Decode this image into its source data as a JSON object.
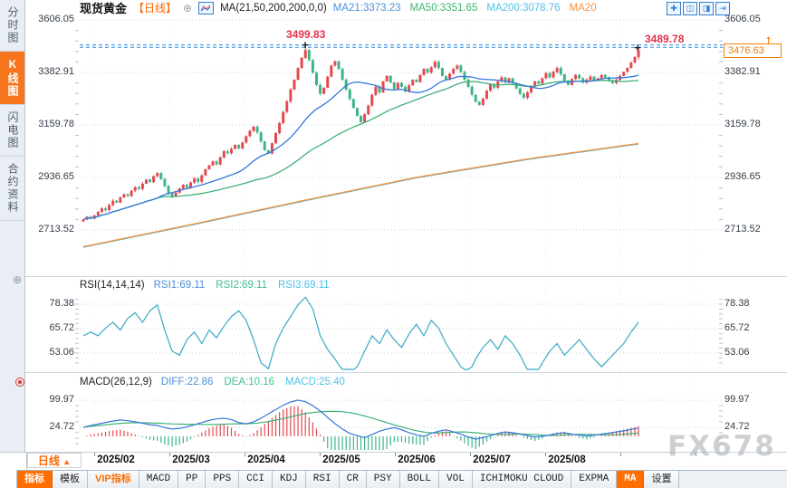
{
  "app": {
    "watermark": "FX678"
  },
  "sidebar": {
    "tabs": [
      {
        "label": "分时图",
        "active": false
      },
      {
        "label": "K线图",
        "active": true
      },
      {
        "label": "闪电图",
        "active": false
      },
      {
        "label": "合约资料",
        "active": false
      }
    ]
  },
  "header": {
    "title": "现货黄金",
    "period": "【日线】",
    "plus_icon": "⊕",
    "ma_formula": "MA(21,50,200,200,0,0)",
    "ma_readouts": [
      {
        "text": "MA21:3373.23",
        "color": "#4a90d9"
      },
      {
        "text": "MA50:3351.65",
        "color": "#3eb370"
      },
      {
        "text": "MA200:3078.76",
        "color": "#4ec2e8"
      },
      {
        "text": "MA20",
        "color": "#f6923c"
      }
    ],
    "window_icons": [
      "✚",
      "◫",
      "◨",
      "⇥"
    ]
  },
  "annotations": {
    "peak_label": "3499.83",
    "high_label": "3489.78",
    "last_price": "3476.63"
  },
  "rsi": {
    "title": "RSI(14,14,14)",
    "readouts": [
      {
        "text": "RSI1:69.11",
        "color": "#4a90d9"
      },
      {
        "text": "RSI2:69.11",
        "color": "#3fc08d"
      },
      {
        "text": "RSI3:69.11",
        "color": "#4ec2e8"
      }
    ]
  },
  "macd": {
    "title": "MACD(26,12,9)",
    "readouts": [
      {
        "text": "DIFF:22.86",
        "color": "#4a90d9"
      },
      {
        "text": "DEA:10.16",
        "color": "#3fc08d"
      },
      {
        "text": "MACD:25.40",
        "color": "#4ec2e8"
      }
    ]
  },
  "xaxis": {
    "period_label": "日线",
    "period_arrow": "▲"
  },
  "toolbar": {
    "tabs": [
      {
        "label": "指标",
        "style": "active"
      },
      {
        "label": "模板",
        "style": ""
      },
      {
        "label": "VIP指标",
        "style": "vip"
      },
      {
        "label": "MACD",
        "style": "mono"
      },
      {
        "label": "PP",
        "style": "mono"
      },
      {
        "label": "PPS",
        "style": "mono"
      },
      {
        "label": "CCI",
        "style": "mono"
      },
      {
        "label": "KDJ",
        "style": "mono"
      },
      {
        "label": "RSI",
        "style": "mono"
      },
      {
        "label": "CR",
        "style": "mono"
      },
      {
        "label": "PSY",
        "style": "mono"
      },
      {
        "label": "BOLL",
        "style": "mono"
      },
      {
        "label": "VOL",
        "style": "mono"
      },
      {
        "label": "ICHIMOKU CLOUD",
        "style": "mono"
      },
      {
        "label": "EXPMA",
        "style": "mono"
      },
      {
        "label": "MA",
        "style": "active mono"
      },
      {
        "label": "设置",
        "style": ""
      }
    ]
  },
  "colors": {
    "candle_up": "#e5484f",
    "candle_down": "#3eb488",
    "ma21": "#3577d9",
    "ma50": "#3eb179",
    "ma200_cyan": "#49b8d8",
    "ma200_orange": "#f6923c",
    "rsi_line": "#3aa8c9",
    "macd_diff": "#3577d9",
    "macd_dea": "#3eb179",
    "hist_up": "#e5484f",
    "hist_down": "#3eb488",
    "dashed_line": "#2a8ce8",
    "grid": "#ccd2da",
    "grid_v": "#e9edf2",
    "tick": "#b9c0c9"
  },
  "chart_data": {
    "type": "candlestick",
    "symbol": "现货黄金",
    "interval": "日线",
    "title": "现货黄金【日线】",
    "x_dates": [
      "2025/02",
      "2025/03",
      "2025/04",
      "2025/05",
      "2025/06",
      "2025/07",
      "2025/08"
    ],
    "price_ticks": [
      3606.05,
      3382.91,
      3159.78,
      2936.65,
      2713.52
    ],
    "price_axis_range": [
      2713.52,
      3606.05
    ],
    "key_points": {
      "peak_high": 3499.83,
      "recent_high": 3489.78,
      "last_price": 3476.63
    },
    "closes": [
      2758,
      2770,
      2762,
      2775,
      2790,
      2805,
      2798,
      2820,
      2838,
      2830,
      2852,
      2865,
      2858,
      2880,
      2895,
      2888,
      2910,
      2928,
      2917,
      2942,
      2955,
      2930,
      2900,
      2868,
      2855,
      2872,
      2890,
      2905,
      2893,
      2915,
      2932,
      2918,
      2945,
      2972,
      2988,
      3005,
      2992,
      3022,
      3048,
      3040,
      3058,
      3075,
      3060,
      3085,
      3112,
      3135,
      3152,
      3128,
      3090,
      3052,
      3038,
      3082,
      3125,
      3168,
      3215,
      3260,
      3310,
      3352,
      3402,
      3445,
      3478,
      3435,
      3382,
      3330,
      3292,
      3318,
      3365,
      3412,
      3430,
      3398,
      3352,
      3310,
      3270,
      3232,
      3198,
      3172,
      3205,
      3242,
      3288,
      3322,
      3298,
      3345,
      3368,
      3340,
      3312,
      3338,
      3322,
      3302,
      3328,
      3352,
      3342,
      3372,
      3398,
      3382,
      3405,
      3428,
      3402,
      3368,
      3352,
      3378,
      3398,
      3412,
      3385,
      3352,
      3322,
      3288,
      3258,
      3245,
      3272,
      3305,
      3332,
      3318,
      3345,
      3362,
      3340,
      3358,
      3338,
      3315,
      3292,
      3275,
      3298,
      3322,
      3345,
      3335,
      3358,
      3380,
      3362,
      3385,
      3402,
      3375,
      3348,
      3330,
      3355,
      3372,
      3358,
      3340,
      3352,
      3365,
      3348,
      3358,
      3372,
      3362,
      3348,
      3338,
      3352,
      3368,
      3385,
      3402,
      3425,
      3448,
      3476.63
    ],
    "high_overrides": {
      "60": 3499.83,
      "150": 3489.78
    },
    "low_overrides": {
      "150": 3438
    },
    "moving_averages": {
      "ma21_last": 3373.23,
      "ma50_last": 3351.65,
      "ma200_last": 3078.76,
      "ma200_path": [
        [
          0,
          2640
        ],
        [
          30,
          2737
        ],
        [
          60,
          2838
        ],
        [
          90,
          2935
        ],
        [
          120,
          3013
        ],
        [
          150,
          3078.76
        ]
      ]
    },
    "rsi": {
      "params": "14,14,14",
      "last": [
        69.11,
        69.11,
        69.11
      ],
      "ticks": [
        78.38,
        65.72,
        53.06
      ],
      "samples_step": 2,
      "values": [
        62,
        64,
        62,
        66,
        69,
        65,
        71,
        74,
        69,
        75,
        78,
        65,
        54,
        52,
        60,
        64,
        58,
        65,
        61,
        67,
        72,
        75,
        70,
        60,
        48,
        45,
        58,
        66,
        72,
        78,
        82,
        76,
        62,
        55,
        50,
        44,
        40,
        46,
        54,
        62,
        58,
        65,
        60,
        56,
        63,
        68,
        62,
        70,
        66,
        58,
        52,
        46,
        42,
        50,
        56,
        60,
        55,
        62,
        58,
        52,
        44,
        40,
        48,
        54,
        58,
        52,
        56,
        60,
        55,
        50,
        46,
        50,
        54,
        58,
        64,
        69
      ]
    },
    "macd": {
      "params": "26,12,9",
      "last": {
        "diff": 22.86,
        "dea": 10.16,
        "macd": 25.4
      },
      "ticks": [
        99.97,
        24.72
      ],
      "samples_step": 2,
      "diff_values": [
        25,
        30,
        34,
        38,
        42,
        45,
        43,
        40,
        36,
        32,
        30,
        24,
        20,
        22,
        26,
        32,
        38,
        44,
        48,
        50,
        46,
        38,
        34,
        40,
        50,
        62,
        74,
        86,
        95,
        100,
        96,
        85,
        70,
        52,
        35,
        20,
        8,
        2,
        -4,
        5,
        14,
        20,
        24,
        18,
        10,
        4,
        0,
        8,
        14,
        18,
        12,
        6,
        -2,
        -8,
        -4,
        2,
        8,
        12,
        10,
        6,
        2,
        -2,
        0,
        4,
        8,
        10,
        6,
        3,
        1,
        3,
        6,
        9,
        12,
        15,
        19,
        23
      ]
    }
  }
}
